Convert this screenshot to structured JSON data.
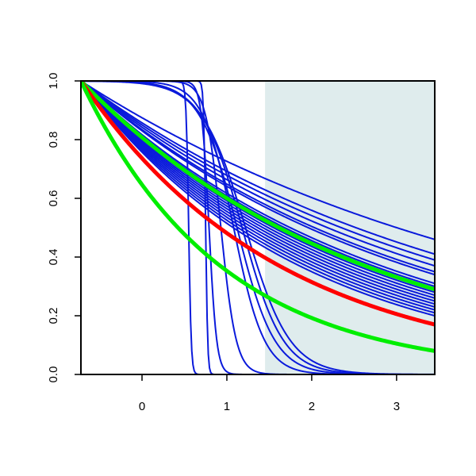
{
  "chart_data": {
    "type": "line",
    "title": "",
    "xlabel": "",
    "ylabel": "",
    "xlim": [
      -0.72,
      3.45
    ],
    "ylim": [
      0,
      1
    ],
    "x_ticks": [
      0,
      1,
      2,
      3
    ],
    "x_tick_labels": [
      "0",
      "1",
      "2",
      "3"
    ],
    "y_ticks": [
      0,
      0.2,
      0.4,
      0.6,
      0.8,
      1.0
    ],
    "y_tick_labels": [
      "0.0",
      "0.2",
      "0.4",
      "0.6",
      "0.8",
      "1.0"
    ],
    "grid": false,
    "shaded_region": {
      "x_start": 1.45,
      "x_end": 3.45,
      "color": "#dfeced"
    },
    "colors": {
      "blue": "#0a1adb",
      "red": "#ff0000",
      "green": "#00ee00",
      "shade": "#dfeced",
      "axis": "#000000"
    },
    "series": [
      {
        "color": "#0a1adb",
        "kind": "step",
        "center": 0.55,
        "width": 0.015
      },
      {
        "color": "#0a1adb",
        "kind": "step",
        "center": 0.75,
        "width": 0.012
      },
      {
        "color": "#0a1adb",
        "kind": "step",
        "center": 0.79,
        "width": 0.045
      },
      {
        "color": "#0a1adb",
        "kind": "step",
        "center": 0.93,
        "width": 0.09
      },
      {
        "color": "#0a1adb",
        "kind": "step",
        "center": 1.08,
        "width": 0.18
      },
      {
        "color": "#0a1adb",
        "kind": "step",
        "center": 1.12,
        "width": 0.22
      },
      {
        "color": "#0a1adb",
        "kind": "step",
        "center": 1.18,
        "width": 0.24
      },
      {
        "color": "#0a1adb",
        "kind": "step",
        "center": 1.22,
        "width": 0.26
      },
      {
        "color": "#0a1adb",
        "kind": "decay",
        "end_value": 0.46
      },
      {
        "color": "#0a1adb",
        "kind": "decay",
        "end_value": 0.41
      },
      {
        "color": "#0a1adb",
        "kind": "decay",
        "end_value": 0.39
      },
      {
        "color": "#0a1adb",
        "kind": "decay",
        "end_value": 0.37
      },
      {
        "color": "#0a1adb",
        "kind": "decay",
        "end_value": 0.35
      },
      {
        "color": "#0a1adb",
        "kind": "decay",
        "end_value": 0.34
      },
      {
        "color": "#0a1adb",
        "kind": "decay",
        "end_value": 0.31
      },
      {
        "color": "#0a1adb",
        "kind": "decay",
        "end_value": 0.3
      },
      {
        "color": "#0a1adb",
        "kind": "decay",
        "end_value": 0.29
      },
      {
        "color": "#0a1adb",
        "kind": "decay",
        "end_value": 0.28
      },
      {
        "color": "#0a1adb",
        "kind": "decay",
        "end_value": 0.27
      },
      {
        "color": "#0a1adb",
        "kind": "decay",
        "end_value": 0.26
      },
      {
        "color": "#0a1adb",
        "kind": "decay",
        "end_value": 0.25
      },
      {
        "color": "#0a1adb",
        "kind": "decay",
        "end_value": 0.24
      },
      {
        "color": "#0a1adb",
        "kind": "decay",
        "end_value": 0.23
      },
      {
        "color": "#0a1adb",
        "kind": "decay",
        "end_value": 0.22
      },
      {
        "color": "#0a1adb",
        "kind": "decay",
        "end_value": 0.21
      },
      {
        "color": "#0a1adb",
        "kind": "decay",
        "end_value": 0.2
      },
      {
        "color": "#00ee00",
        "kind": "decay",
        "end_value": 0.29
      },
      {
        "color": "#ff0000",
        "kind": "decay",
        "end_value": 0.17
      },
      {
        "color": "#00ee00",
        "kind": "decay",
        "end_value": 0.08
      }
    ]
  }
}
